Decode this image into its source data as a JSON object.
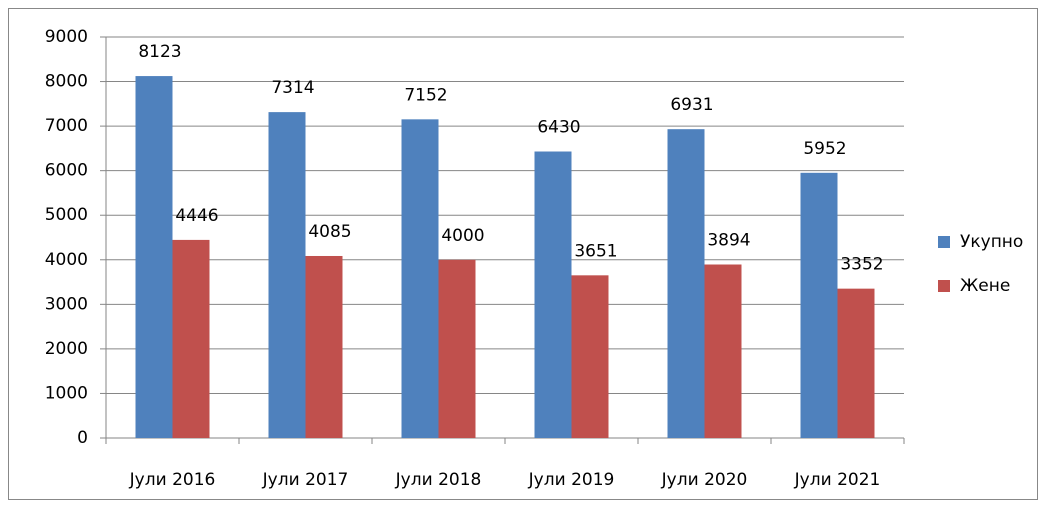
{
  "chart_data": {
    "type": "bar",
    "categories": [
      "Јули 2016",
      "Јули 2017",
      "Јули 2018",
      "Јули 2019",
      "Јули 2020",
      "Јули 2021"
    ],
    "series": [
      {
        "name": "Укупно",
        "color": "#4f81bd",
        "values": [
          8123,
          7314,
          7152,
          6430,
          6931,
          5952
        ]
      },
      {
        "name": "Жене",
        "color": "#c0504d",
        "values": [
          4446,
          4085,
          4000,
          3651,
          3894,
          3352
        ]
      }
    ],
    "ylim": [
      0,
      9000
    ],
    "yticks": [
      0,
      1000,
      2000,
      3000,
      4000,
      5000,
      6000,
      7000,
      8000,
      9000
    ],
    "grid": true,
    "legend": "right"
  }
}
